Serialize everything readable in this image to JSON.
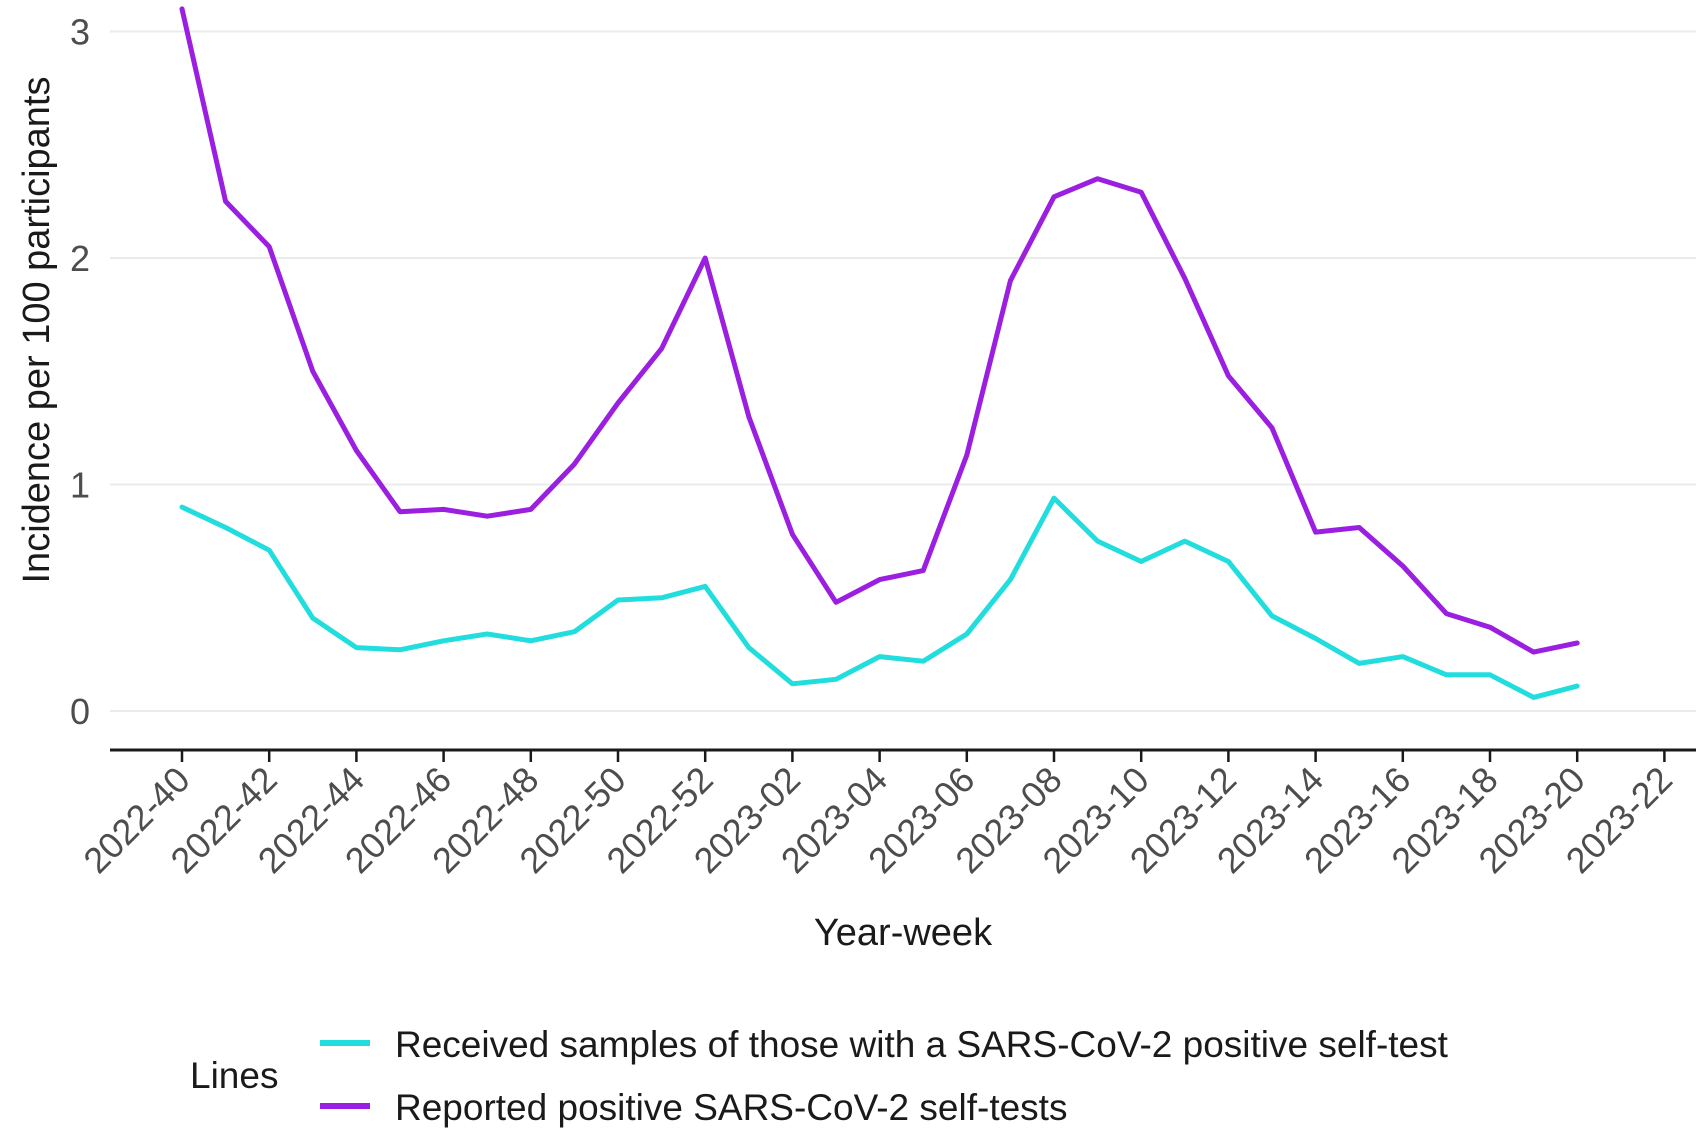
{
  "chart_data": {
    "type": "line",
    "xlabel": "Year-week",
    "ylabel": "Incidence per 100 participants",
    "ylim": [
      0,
      3
    ],
    "yticks": [
      0,
      1,
      2,
      3
    ],
    "xticks": [
      "2022-40",
      "2022-42",
      "2022-44",
      "2022-46",
      "2022-48",
      "2022-50",
      "2022-52",
      "2023-02",
      "2023-04",
      "2023-06",
      "2023-08",
      "2023-10",
      "2023-12",
      "2023-14",
      "2023-16",
      "2023-18",
      "2023-20",
      "2023-22"
    ],
    "x": [
      "2022-40",
      "2022-41",
      "2022-42",
      "2022-43",
      "2022-44",
      "2022-45",
      "2022-46",
      "2022-47",
      "2022-48",
      "2022-49",
      "2022-50",
      "2022-51",
      "2022-52",
      "2023-01",
      "2023-02",
      "2023-03",
      "2023-04",
      "2023-05",
      "2023-06",
      "2023-07",
      "2023-08",
      "2023-09",
      "2023-10",
      "2023-11",
      "2023-12",
      "2023-13",
      "2023-14",
      "2023-15",
      "2023-16",
      "2023-17",
      "2023-18",
      "2023-19",
      "2023-20"
    ],
    "grid": "horizontal",
    "legend_position": "bottom",
    "legend_title": "Lines",
    "series": [
      {
        "name": "Received samples of those with a SARS-CoV-2 positive self-test",
        "color": "#22dddd",
        "values": [
          0.9,
          0.81,
          0.71,
          0.41,
          0.28,
          0.27,
          0.31,
          0.34,
          0.31,
          0.35,
          0.49,
          0.5,
          0.55,
          0.28,
          0.12,
          0.14,
          0.24,
          0.22,
          0.34,
          0.58,
          0.94,
          0.75,
          0.66,
          0.75,
          0.66,
          0.42,
          0.32,
          0.21,
          0.24,
          0.16,
          0.16,
          0.06,
          0.11
        ]
      },
      {
        "name": "Reported positive SARS-CoV-2 self-tests",
        "color": "#9b1fe0",
        "values": [
          3.1,
          2.25,
          2.05,
          1.5,
          1.15,
          0.88,
          0.89,
          0.86,
          0.89,
          1.09,
          1.36,
          1.6,
          2.0,
          1.3,
          0.78,
          0.48,
          0.58,
          0.62,
          1.13,
          1.9,
          2.27,
          2.35,
          2.29,
          1.91,
          1.48,
          1.25,
          0.79,
          0.81,
          0.64,
          0.43,
          0.37,
          0.26,
          0.3
        ]
      }
    ]
  }
}
